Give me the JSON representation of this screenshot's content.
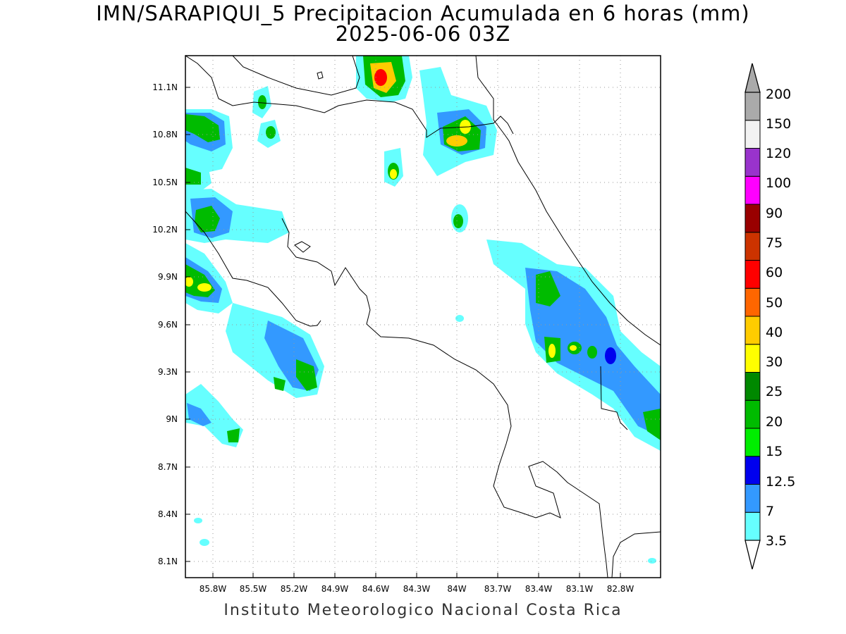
{
  "title": {
    "line1": "IMN/SARAPIQUI_5 Precipitacion Acumulada en 6 horas (mm)",
    "line2": "2025-06-06 03Z"
  },
  "credit": "Instituto Meteorologico Nacional Costa Rica",
  "lon_ticks": [
    "85.8W",
    "85.5W",
    "85.2W",
    "84.9W",
    "84.6W",
    "84.3W",
    "84W",
    "83.7W",
    "83.4W",
    "83.1W",
    "82.8W"
  ],
  "lat_ticks": [
    "11.1N",
    "10.8N",
    "10.5N",
    "10.2N",
    "9.9N",
    "9.6N",
    "9.3N",
    "9N",
    "8.7N",
    "8.4N",
    "8.1N"
  ],
  "map_extent": {
    "lon_min": -86.05,
    "lon_max": -82.55,
    "lat_min": 8.0,
    "lat_max": 11.3
  },
  "colorbar": {
    "levels": [
      "3.5",
      "7",
      "12.5",
      "15",
      "20",
      "25",
      "30",
      "40",
      "50",
      "60",
      "75",
      "90",
      "100",
      "120",
      "150",
      "200"
    ],
    "colors": [
      "#66ffff",
      "#3399ff",
      "#0000ee",
      "#00ee00",
      "#00bb00",
      "#008800",
      "#ffff00",
      "#ffcc00",
      "#ff6600",
      "#ff0000",
      "#cc3300",
      "#990000",
      "#ff00ff",
      "#9933cc",
      "#f2f2f2",
      "#aaaaaa"
    ]
  }
}
